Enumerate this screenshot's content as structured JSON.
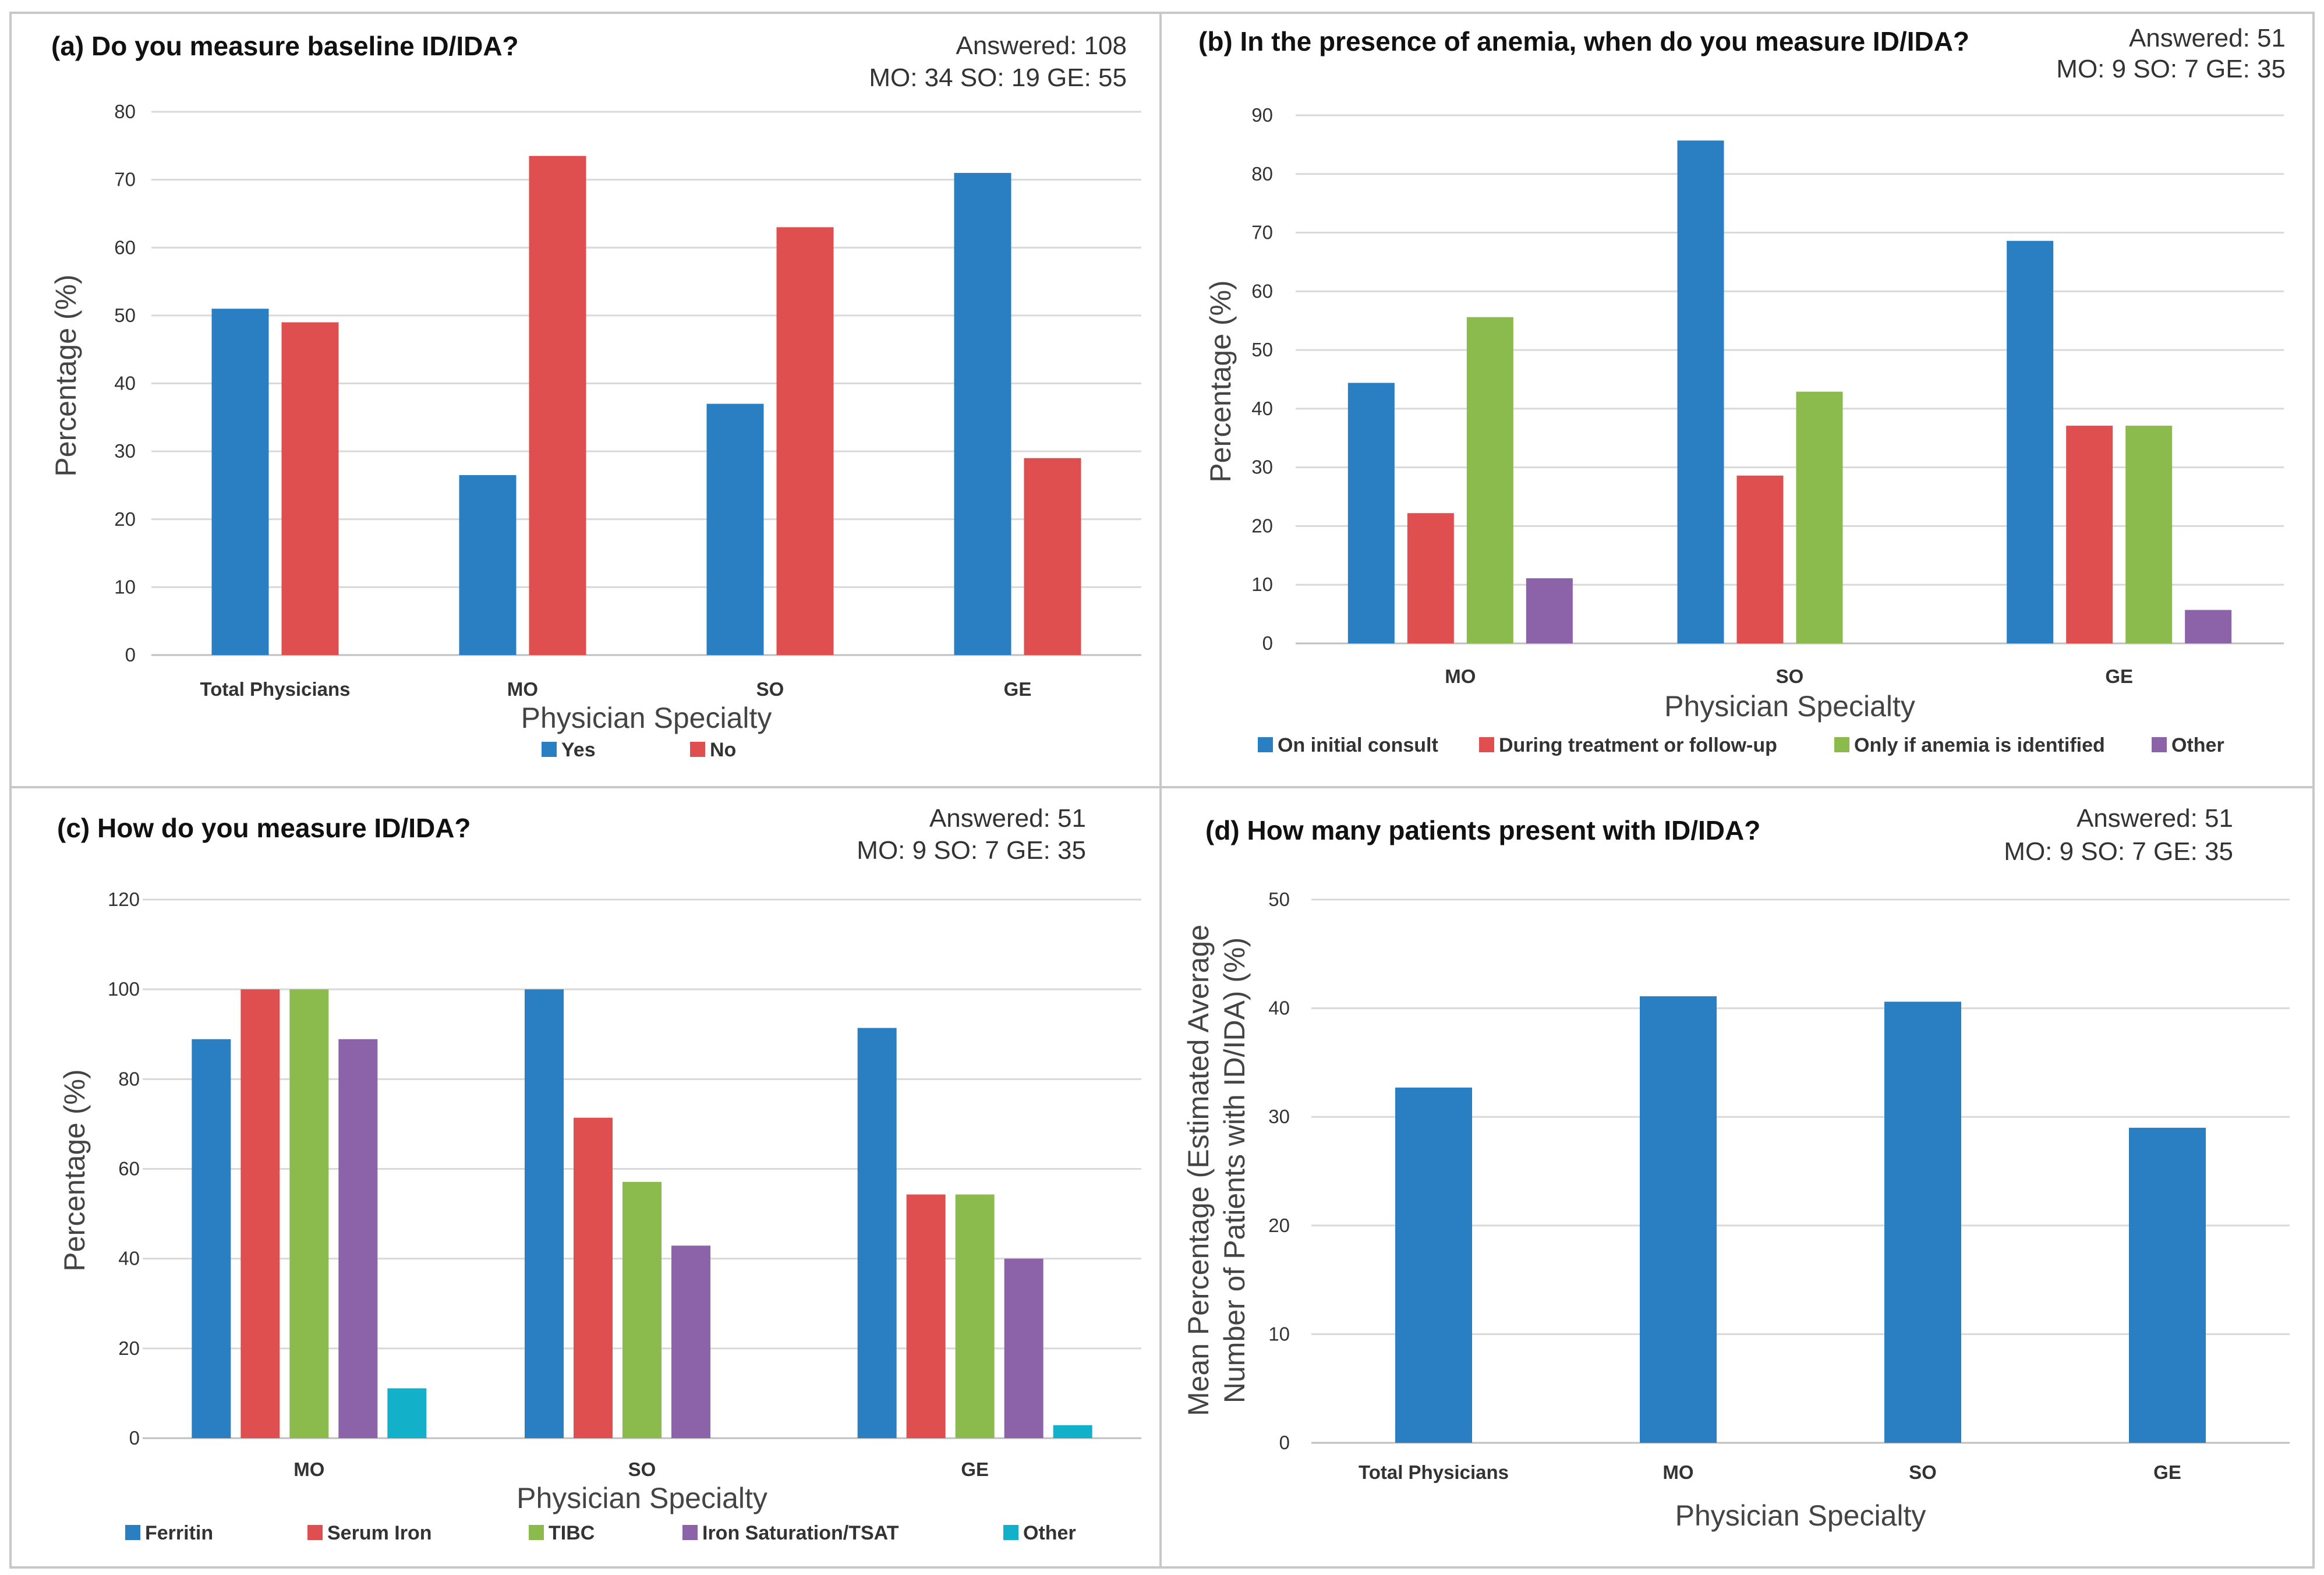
{
  "chart_data": [
    {
      "type": "bar",
      "title": "(a) Do you measure baseline ID/IDA?",
      "answered": "Answered: 108",
      "counts": "MO: 34   SO: 19   GE: 55",
      "xlabel": "Physician Specialty",
      "ylabel": "Percentage (%)",
      "ylim": [
        0,
        80
      ],
      "ystep": 10,
      "categories": [
        "Total Physicians",
        "MO",
        "SO",
        "GE"
      ],
      "series": [
        {
          "name": "Yes",
          "color": "#2a7fc2",
          "values": [
            51,
            26.5,
            37,
            71
          ]
        },
        {
          "name": "No",
          "color": "#e04f4f",
          "values": [
            49,
            73.5,
            63,
            29
          ]
        }
      ],
      "legend_position": "bottom"
    },
    {
      "type": "bar",
      "title": "(b) In the presence of anemia, when do you measure ID/IDA?",
      "answered": "Answered: 51",
      "counts": "MO: 9   SO: 7   GE: 35",
      "xlabel": "Physician Specialty",
      "ylabel": "Percentage (%)",
      "ylim": [
        0,
        90
      ],
      "ystep": 10,
      "categories": [
        "MO",
        "SO",
        "GE"
      ],
      "series": [
        {
          "name": "On initial consult",
          "color": "#2a7fc2",
          "values": [
            44.4,
            85.7,
            68.6
          ]
        },
        {
          "name": "During treatment or follow-up",
          "color": "#e04f4f",
          "values": [
            22.2,
            28.6,
            37.1
          ]
        },
        {
          "name": "Only if anemia is identified",
          "color": "#8cbb4d",
          "values": [
            55.6,
            42.9,
            37.1
          ]
        },
        {
          "name": "Other",
          "color": "#8c62a8",
          "values": [
            11.1,
            0,
            5.7
          ]
        }
      ],
      "legend_position": "bottom"
    },
    {
      "type": "bar",
      "title": "(c) How do you measure ID/IDA?",
      "answered": "Answered: 51",
      "counts": "MO: 9   SO: 7   GE: 35",
      "xlabel": "Physician Specialty",
      "ylabel": "Percentage (%)",
      "ylim": [
        0,
        120
      ],
      "ystep": 20,
      "categories": [
        "MO",
        "SO",
        "GE"
      ],
      "series": [
        {
          "name": "Ferritin",
          "color": "#2a7fc2",
          "values": [
            88.9,
            100,
            91.4
          ]
        },
        {
          "name": "Serum Iron",
          "color": "#e04f4f",
          "values": [
            100,
            71.4,
            54.3
          ]
        },
        {
          "name": "TIBC",
          "color": "#8cbb4d",
          "values": [
            100,
            57.1,
            54.3
          ]
        },
        {
          "name": "Iron Saturation/TSAT",
          "color": "#8c62a8",
          "values": [
            88.9,
            42.9,
            40
          ]
        },
        {
          "name": "Other",
          "color": "#12b0c9",
          "values": [
            11.1,
            0,
            2.9
          ]
        }
      ],
      "legend_position": "bottom"
    },
    {
      "type": "bar",
      "title": "(d) How many patients present with ID/IDA?",
      "answered": "Answered: 51",
      "counts": "MO: 9   SO: 7   GE: 35",
      "xlabel": "Physician Specialty",
      "ylabel_lines": [
        "Mean Percentage (Estimated Average",
        "Number of Patients with ID/IDA) (%)"
      ],
      "ylim": [
        0,
        50
      ],
      "ystep": 10,
      "categories": [
        "Total Physicians",
        "MO",
        "SO",
        "GE"
      ],
      "series": [
        {
          "name": "Mean percentage",
          "color": "#2a7fc2",
          "values": [
            32.7,
            41.1,
            40.6,
            29
          ]
        }
      ],
      "legend_position": "none"
    }
  ]
}
